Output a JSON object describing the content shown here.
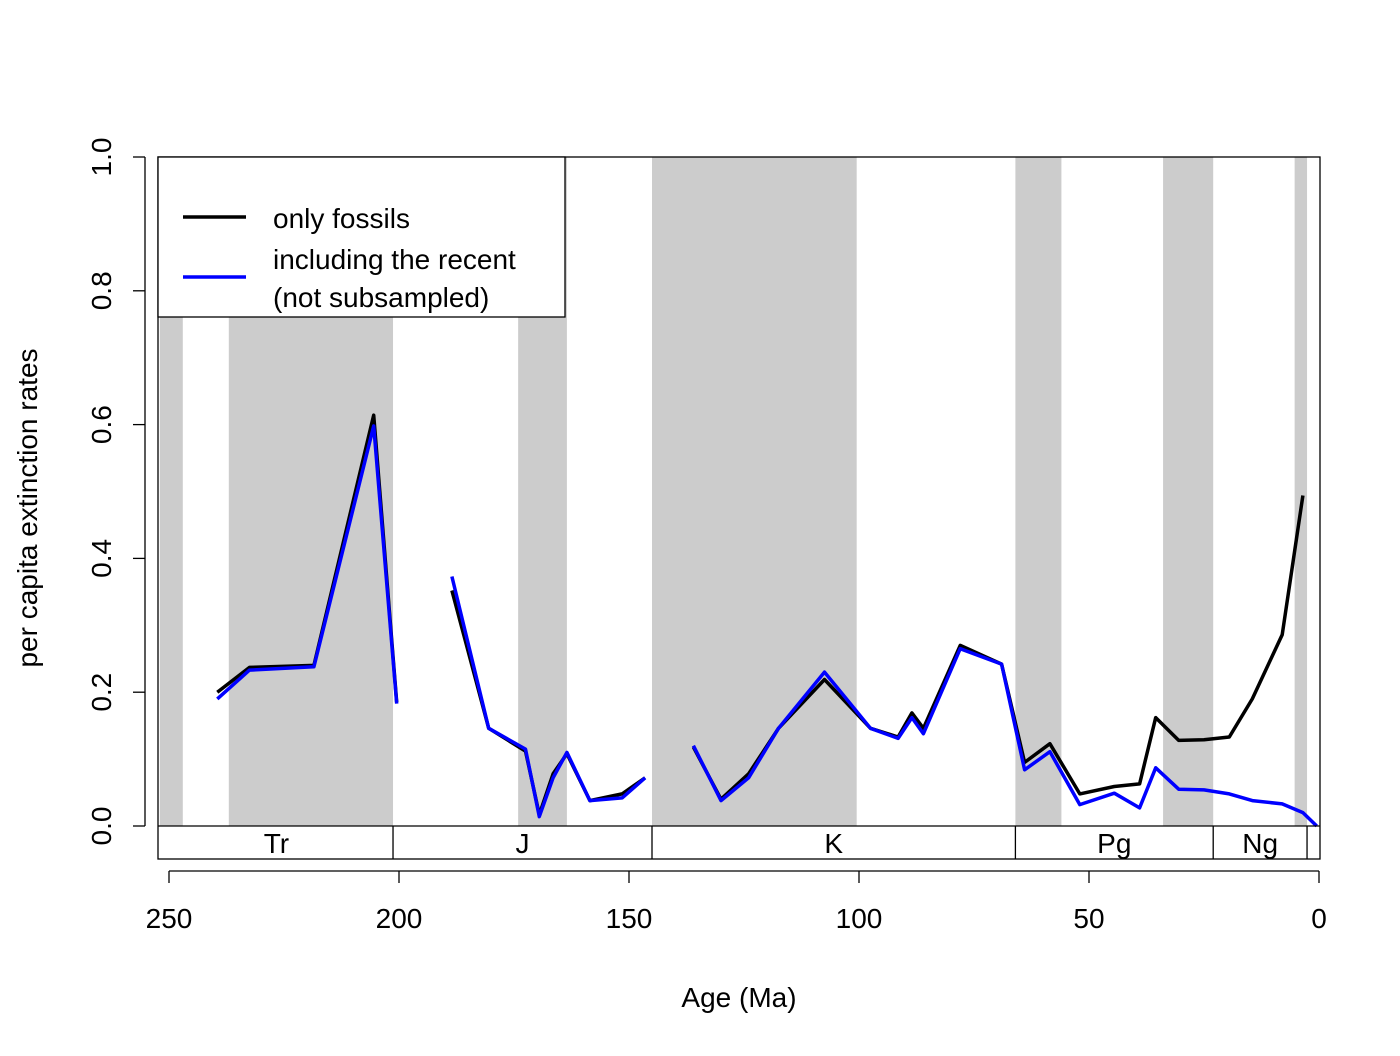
{
  "chart_data": {
    "type": "line",
    "xlabel": "Age (Ma)",
    "ylabel": "per capita extinction rates",
    "xlim": [
      252,
      0
    ],
    "ylim": [
      0,
      1
    ],
    "x_ticks": [
      250,
      200,
      150,
      100,
      50,
      0
    ],
    "y_ticks": [
      0.0,
      0.2,
      0.4,
      0.6,
      0.8,
      1.0
    ],
    "y_tick_labels": [
      "0.0",
      "0.2",
      "0.4",
      "0.6",
      "0.8",
      "1.0"
    ],
    "legend_placement": "top-left",
    "shaded_stage_bands": [
      [
        252,
        247
      ],
      [
        237,
        201.3
      ],
      [
        174.1,
        163.5
      ],
      [
        145,
        100.5
      ],
      [
        66,
        56
      ],
      [
        33.9,
        23
      ],
      [
        5.3,
        2.6
      ]
    ],
    "band_color": "#cccccc",
    "periods": [
      {
        "label": "Tr",
        "start": 252,
        "end": 201.3
      },
      {
        "label": "J",
        "start": 201.3,
        "end": 145
      },
      {
        "label": "K",
        "start": 145,
        "end": 66
      },
      {
        "label": "Pg",
        "start": 66,
        "end": 23
      },
      {
        "label": "Ng",
        "start": 23,
        "end": 2.6
      },
      {
        "label": "",
        "start": 2.6,
        "end": 0
      }
    ],
    "series": [
      {
        "name": "only fossils",
        "color": "#000000",
        "segments": [
          [
            [
              239.5,
              0.2
            ],
            [
              232.5,
              0.237
            ],
            [
              218.5,
              0.24
            ],
            [
              205.5,
              0.614
            ],
            [
              200.5,
              0.185
            ]
          ],
          [
            [
              188.5,
              0.352
            ],
            [
              180.5,
              0.146
            ],
            [
              172.5,
              0.112
            ],
            [
              169.5,
              0.017
            ],
            [
              166.5,
              0.078
            ],
            [
              163.5,
              0.108
            ],
            [
              158.5,
              0.038
            ],
            [
              151.5,
              0.048
            ],
            [
              146.5,
              0.072
            ]
          ],
          [
            [
              136,
              0.118
            ],
            [
              130,
              0.04
            ],
            [
              124,
              0.078
            ],
            [
              117.5,
              0.146
            ],
            [
              107.5,
              0.219
            ],
            [
              97.5,
              0.146
            ],
            [
              91.5,
              0.133
            ],
            [
              88.5,
              0.169
            ],
            [
              86,
              0.146
            ],
            [
              78,
              0.27
            ],
            [
              69,
              0.242
            ],
            [
              64,
              0.095
            ],
            [
              58.5,
              0.123
            ],
            [
              52,
              0.048
            ],
            [
              44.5,
              0.059
            ],
            [
              39,
              0.063
            ],
            [
              35.5,
              0.162
            ],
            [
              30.5,
              0.128
            ],
            [
              25,
              0.129
            ],
            [
              19.5,
              0.133
            ],
            [
              14.5,
              0.19
            ],
            [
              8,
              0.286
            ],
            [
              3.5,
              0.494
            ]
          ]
        ]
      },
      {
        "name": "including the recent\n(not subsampled)",
        "color": "#0000ff",
        "segments": [
          [
            [
              239.5,
              0.19
            ],
            [
              232.5,
              0.233
            ],
            [
              218.5,
              0.238
            ],
            [
              205.5,
              0.598
            ],
            [
              200.5,
              0.183
            ]
          ],
          [
            [
              188.5,
              0.373
            ],
            [
              180.5,
              0.146
            ],
            [
              172.5,
              0.115
            ],
            [
              169.5,
              0.014
            ],
            [
              166.5,
              0.072
            ],
            [
              163.5,
              0.11
            ],
            [
              158.5,
              0.038
            ],
            [
              151.5,
              0.042
            ],
            [
              146.5,
              0.072
            ]
          ],
          [
            [
              136,
              0.12
            ],
            [
              130,
              0.038
            ],
            [
              124,
              0.072
            ],
            [
              117.5,
              0.146
            ],
            [
              107.5,
              0.23
            ],
            [
              97.5,
              0.146
            ],
            [
              91.5,
              0.131
            ],
            [
              88.5,
              0.162
            ],
            [
              86,
              0.138
            ],
            [
              78,
              0.265
            ],
            [
              69,
              0.242
            ],
            [
              64,
              0.084
            ],
            [
              58.5,
              0.111
            ],
            [
              52,
              0.032
            ],
            [
              44.5,
              0.049
            ],
            [
              39,
              0.027
            ],
            [
              35.5,
              0.087
            ],
            [
              30.5,
              0.055
            ],
            [
              25,
              0.054
            ],
            [
              19.5,
              0.048
            ],
            [
              14.5,
              0.038
            ],
            [
              8,
              0.033
            ],
            [
              3.5,
              0.02
            ],
            [
              0.5,
              0.0
            ]
          ]
        ]
      }
    ]
  }
}
